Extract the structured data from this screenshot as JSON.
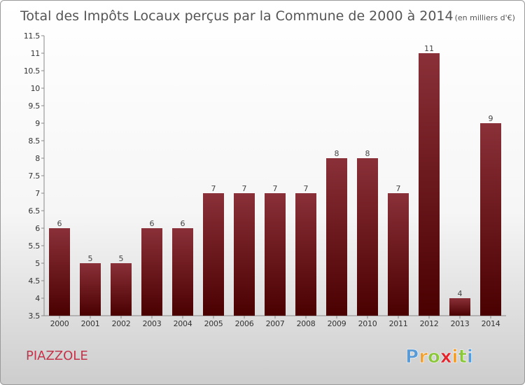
{
  "chart_data": {
    "type": "bar",
    "title": "Total des Impôts Locaux perçus par la Commune de 2000 à 2014",
    "unit_note": "(en milliers d'€)",
    "categories": [
      "2000",
      "2001",
      "2002",
      "2003",
      "2004",
      "2005",
      "2006",
      "2007",
      "2008",
      "2009",
      "2010",
      "2011",
      "2012",
      "2013",
      "2014"
    ],
    "values": [
      6,
      5,
      5,
      6,
      6,
      7,
      7,
      7,
      7,
      8,
      8,
      7,
      11,
      4,
      9
    ],
    "value_labels": [
      "6",
      "5",
      "5",
      "6",
      "6",
      "7",
      "7",
      "7",
      "7",
      "8",
      "8",
      "7",
      "11",
      "4",
      "9"
    ],
    "ylim": [
      3.5,
      11.5
    ],
    "yticks": [
      3.5,
      4,
      4.5,
      5,
      5.5,
      6,
      6.5,
      7,
      7.5,
      8,
      8.5,
      9,
      9.5,
      10,
      10.5,
      11,
      11.5
    ],
    "ytick_labels": [
      "3.5",
      "4",
      "4.5",
      "5",
      "5.5",
      "6",
      "6.5",
      "7",
      "7.5",
      "8",
      "8.5",
      "9",
      "9.5",
      "10",
      "10.5",
      "11",
      "11.5"
    ],
    "xlabel": "",
    "ylabel": "",
    "grid": false,
    "bar_color_top": "#8a3038",
    "bar_color_bottom": "#4a0000"
  },
  "commune_name": "PIAZZOLE",
  "logo": {
    "text": "Proxiti",
    "colors": [
      "#5b9bd5",
      "#f0a030",
      "#8cc63f",
      "#e2252c",
      "#f0a030",
      "#8cc63f",
      "#5b9bd5"
    ]
  }
}
